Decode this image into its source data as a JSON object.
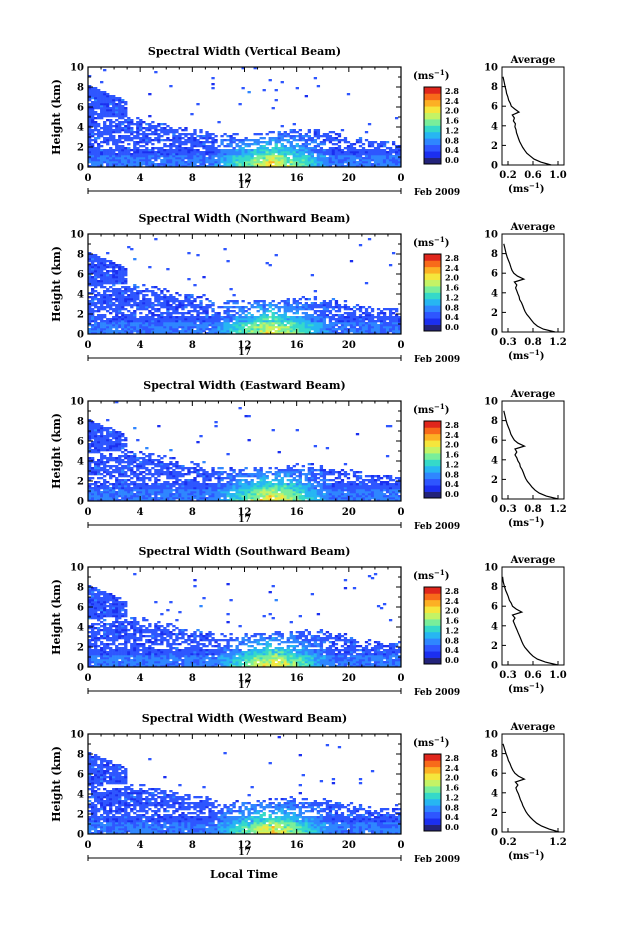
{
  "figure": {
    "xlabel_bottom": "Local Time",
    "date_label": "Feb 2009",
    "day_label": "17",
    "average_title": "Average",
    "avg_xlabel_base": "(ms",
    "avg_xlabel_exp": "−1",
    "avg_xlabel_tail": ")"
  },
  "colorbar": {
    "unit_base": "(ms",
    "unit_exp": "−1",
    "unit_tail": ")",
    "ticks": [
      "0.0",
      "0.4",
      "0.8",
      "1.2",
      "1.6",
      "2.0",
      "2.4",
      "2.8"
    ]
  },
  "colors": {
    "palette": [
      "#23237a",
      "#1b2ff0",
      "#2e56ff",
      "#2f86ff",
      "#27b6f2",
      "#35d9c9",
      "#79ee9a",
      "#c4f365",
      "#f5e63c",
      "#fcb024",
      "#f86a1a",
      "#e0261c"
    ]
  },
  "chart_data": [
    {
      "type": "heatmap",
      "title": "Spectral Width (Vertical Beam)",
      "ylabel": "Height (km)",
      "xlim": [
        0,
        24
      ],
      "ylim": [
        0,
        10
      ],
      "xticks": [
        "0",
        "4",
        "8",
        "12",
        "16",
        "20",
        "0"
      ],
      "yticks": [
        "0",
        "2",
        "4",
        "6",
        "8",
        "10"
      ],
      "avg_xticks": [
        "0.2",
        "0.6",
        "1.0"
      ],
      "avg_xlim": [
        0.0,
        1.2
      ],
      "avg_profile": [
        [
          0.95,
          0
        ],
        [
          0.75,
          0.3
        ],
        [
          0.62,
          0.6
        ],
        [
          0.55,
          0.9
        ],
        [
          0.48,
          1.2
        ],
        [
          0.44,
          1.5
        ],
        [
          0.4,
          1.8
        ],
        [
          0.37,
          2.1
        ],
        [
          0.34,
          2.4
        ],
        [
          0.32,
          2.7
        ],
        [
          0.3,
          3.0
        ],
        [
          0.28,
          3.3
        ],
        [
          0.27,
          3.6
        ],
        [
          0.25,
          3.9
        ],
        [
          0.26,
          4.2
        ],
        [
          0.22,
          4.5
        ],
        [
          0.24,
          4.8
        ],
        [
          0.2,
          5.1
        ],
        [
          0.33,
          5.4
        ],
        [
          0.25,
          5.7
        ],
        [
          0.18,
          6.0
        ],
        [
          0.16,
          6.3
        ],
        [
          0.13,
          6.6
        ],
        [
          0.11,
          7.0
        ],
        [
          0.09,
          7.3
        ],
        [
          0.08,
          7.6
        ],
        [
          0.06,
          8.0
        ],
        [
          0.04,
          8.5
        ],
        [
          0.02,
          9.0
        ]
      ]
    },
    {
      "type": "heatmap",
      "title": "Spectral Width (Northward Beam)",
      "ylabel": "Height (km)",
      "xlim": [
        0,
        24
      ],
      "ylim": [
        0,
        10
      ],
      "xticks": [
        "0",
        "4",
        "8",
        "12",
        "16",
        "20",
        "0"
      ],
      "yticks": [
        "0",
        "2",
        "4",
        "6",
        "8",
        "10"
      ],
      "avg_xticks": [
        "0.3",
        "0.8",
        "1.2"
      ],
      "avg_xlim": [
        0.2,
        1.25
      ],
      "avg_profile": [
        [
          1.1,
          0
        ],
        [
          0.9,
          0.3
        ],
        [
          0.8,
          0.6
        ],
        [
          0.74,
          0.9
        ],
        [
          0.7,
          1.2
        ],
        [
          0.66,
          1.5
        ],
        [
          0.62,
          1.8
        ],
        [
          0.59,
          2.1
        ],
        [
          0.57,
          2.4
        ],
        [
          0.55,
          2.7
        ],
        [
          0.53,
          3.0
        ],
        [
          0.5,
          3.3
        ],
        [
          0.49,
          3.6
        ],
        [
          0.47,
          3.9
        ],
        [
          0.45,
          4.2
        ],
        [
          0.43,
          4.5
        ],
        [
          0.45,
          4.8
        ],
        [
          0.41,
          5.1
        ],
        [
          0.57,
          5.4
        ],
        [
          0.46,
          5.7
        ],
        [
          0.4,
          6.0
        ],
        [
          0.37,
          6.3
        ],
        [
          0.35,
          6.6
        ],
        [
          0.33,
          7.0
        ],
        [
          0.31,
          7.3
        ],
        [
          0.29,
          7.6
        ],
        [
          0.27,
          8.0
        ],
        [
          0.25,
          8.5
        ],
        [
          0.23,
          9.0
        ]
      ]
    },
    {
      "type": "heatmap",
      "title": "Spectral Width (Eastward Beam)",
      "ylabel": "Height (km)",
      "xlim": [
        0,
        24
      ],
      "ylim": [
        0,
        10
      ],
      "xticks": [
        "0",
        "4",
        "8",
        "12",
        "16",
        "20",
        "0"
      ],
      "yticks": [
        "0",
        "2",
        "4",
        "6",
        "8",
        "10"
      ],
      "avg_xticks": [
        "0.3",
        "0.8",
        "1.2"
      ],
      "avg_xlim": [
        0.2,
        1.25
      ],
      "avg_profile": [
        [
          1.15,
          0
        ],
        [
          0.95,
          0.3
        ],
        [
          0.83,
          0.6
        ],
        [
          0.76,
          0.9
        ],
        [
          0.71,
          1.2
        ],
        [
          0.67,
          1.5
        ],
        [
          0.63,
          1.8
        ],
        [
          0.6,
          2.1
        ],
        [
          0.58,
          2.4
        ],
        [
          0.56,
          2.7
        ],
        [
          0.54,
          3.0
        ],
        [
          0.51,
          3.3
        ],
        [
          0.5,
          3.6
        ],
        [
          0.47,
          3.9
        ],
        [
          0.45,
          4.2
        ],
        [
          0.42,
          4.5
        ],
        [
          0.45,
          4.8
        ],
        [
          0.42,
          5.1
        ],
        [
          0.58,
          5.4
        ],
        [
          0.47,
          5.7
        ],
        [
          0.41,
          6.0
        ],
        [
          0.38,
          6.3
        ],
        [
          0.35,
          6.6
        ],
        [
          0.33,
          7.0
        ],
        [
          0.31,
          7.3
        ],
        [
          0.29,
          7.6
        ],
        [
          0.27,
          8.0
        ],
        [
          0.25,
          8.5
        ],
        [
          0.23,
          9.0
        ]
      ]
    },
    {
      "type": "heatmap",
      "title": "Spectral Width (Southward Beam)",
      "ylabel": "Height (km)",
      "xlim": [
        0,
        24
      ],
      "ylim": [
        0,
        10
      ],
      "xticks": [
        "0",
        "4",
        "8",
        "12",
        "16",
        "20",
        "0"
      ],
      "yticks": [
        "0",
        "2",
        "4",
        "6",
        "8",
        "10"
      ],
      "avg_xticks": [
        "0.3",
        "0.6",
        "1.0"
      ],
      "avg_xlim": [
        0.15,
        1.15
      ],
      "avg_profile": [
        [
          1.05,
          0
        ],
        [
          0.85,
          0.3
        ],
        [
          0.72,
          0.6
        ],
        [
          0.65,
          0.9
        ],
        [
          0.6,
          1.2
        ],
        [
          0.56,
          1.5
        ],
        [
          0.52,
          1.8
        ],
        [
          0.49,
          2.1
        ],
        [
          0.47,
          2.4
        ],
        [
          0.45,
          2.7
        ],
        [
          0.43,
          3.0
        ],
        [
          0.41,
          3.3
        ],
        [
          0.39,
          3.6
        ],
        [
          0.37,
          3.9
        ],
        [
          0.35,
          4.2
        ],
        [
          0.33,
          4.5
        ],
        [
          0.36,
          4.8
        ],
        [
          0.32,
          5.1
        ],
        [
          0.47,
          5.4
        ],
        [
          0.38,
          5.7
        ],
        [
          0.32,
          6.0
        ],
        [
          0.3,
          6.3
        ],
        [
          0.27,
          6.6
        ],
        [
          0.25,
          7.0
        ],
        [
          0.23,
          7.3
        ],
        [
          0.21,
          7.6
        ],
        [
          0.19,
          8.0
        ],
        [
          0.17,
          8.5
        ],
        [
          0.16,
          9.0
        ]
      ]
    },
    {
      "type": "heatmap",
      "title": "Spectral Width (Westward Beam)",
      "ylabel": "Height (km)",
      "xlim": [
        0,
        24
      ],
      "ylim": [
        0,
        10
      ],
      "xticks": [
        "0",
        "4",
        "8",
        "12",
        "16",
        "20",
        "0"
      ],
      "yticks": [
        "0",
        "2",
        "4",
        "6",
        "8",
        "10"
      ],
      "avg_xticks": [
        "0.2",
        "1.2"
      ],
      "avg_xlim": [
        0.0,
        1.25
      ],
      "avg_profile": [
        [
          1.15,
          0
        ],
        [
          0.95,
          0.3
        ],
        [
          0.8,
          0.6
        ],
        [
          0.7,
          0.9
        ],
        [
          0.63,
          1.2
        ],
        [
          0.57,
          1.5
        ],
        [
          0.52,
          1.8
        ],
        [
          0.48,
          2.1
        ],
        [
          0.45,
          2.4
        ],
        [
          0.42,
          2.7
        ],
        [
          0.4,
          3.0
        ],
        [
          0.37,
          3.3
        ],
        [
          0.35,
          3.6
        ],
        [
          0.33,
          3.9
        ],
        [
          0.3,
          4.2
        ],
        [
          0.28,
          4.5
        ],
        [
          0.32,
          4.8
        ],
        [
          0.27,
          5.1
        ],
        [
          0.45,
          5.4
        ],
        [
          0.33,
          5.7
        ],
        [
          0.26,
          6.0
        ],
        [
          0.22,
          6.3
        ],
        [
          0.19,
          6.6
        ],
        [
          0.16,
          7.0
        ],
        [
          0.13,
          7.3
        ],
        [
          0.11,
          7.6
        ],
        [
          0.08,
          8.0
        ],
        [
          0.05,
          8.5
        ],
        [
          0.02,
          9.0
        ]
      ]
    }
  ]
}
